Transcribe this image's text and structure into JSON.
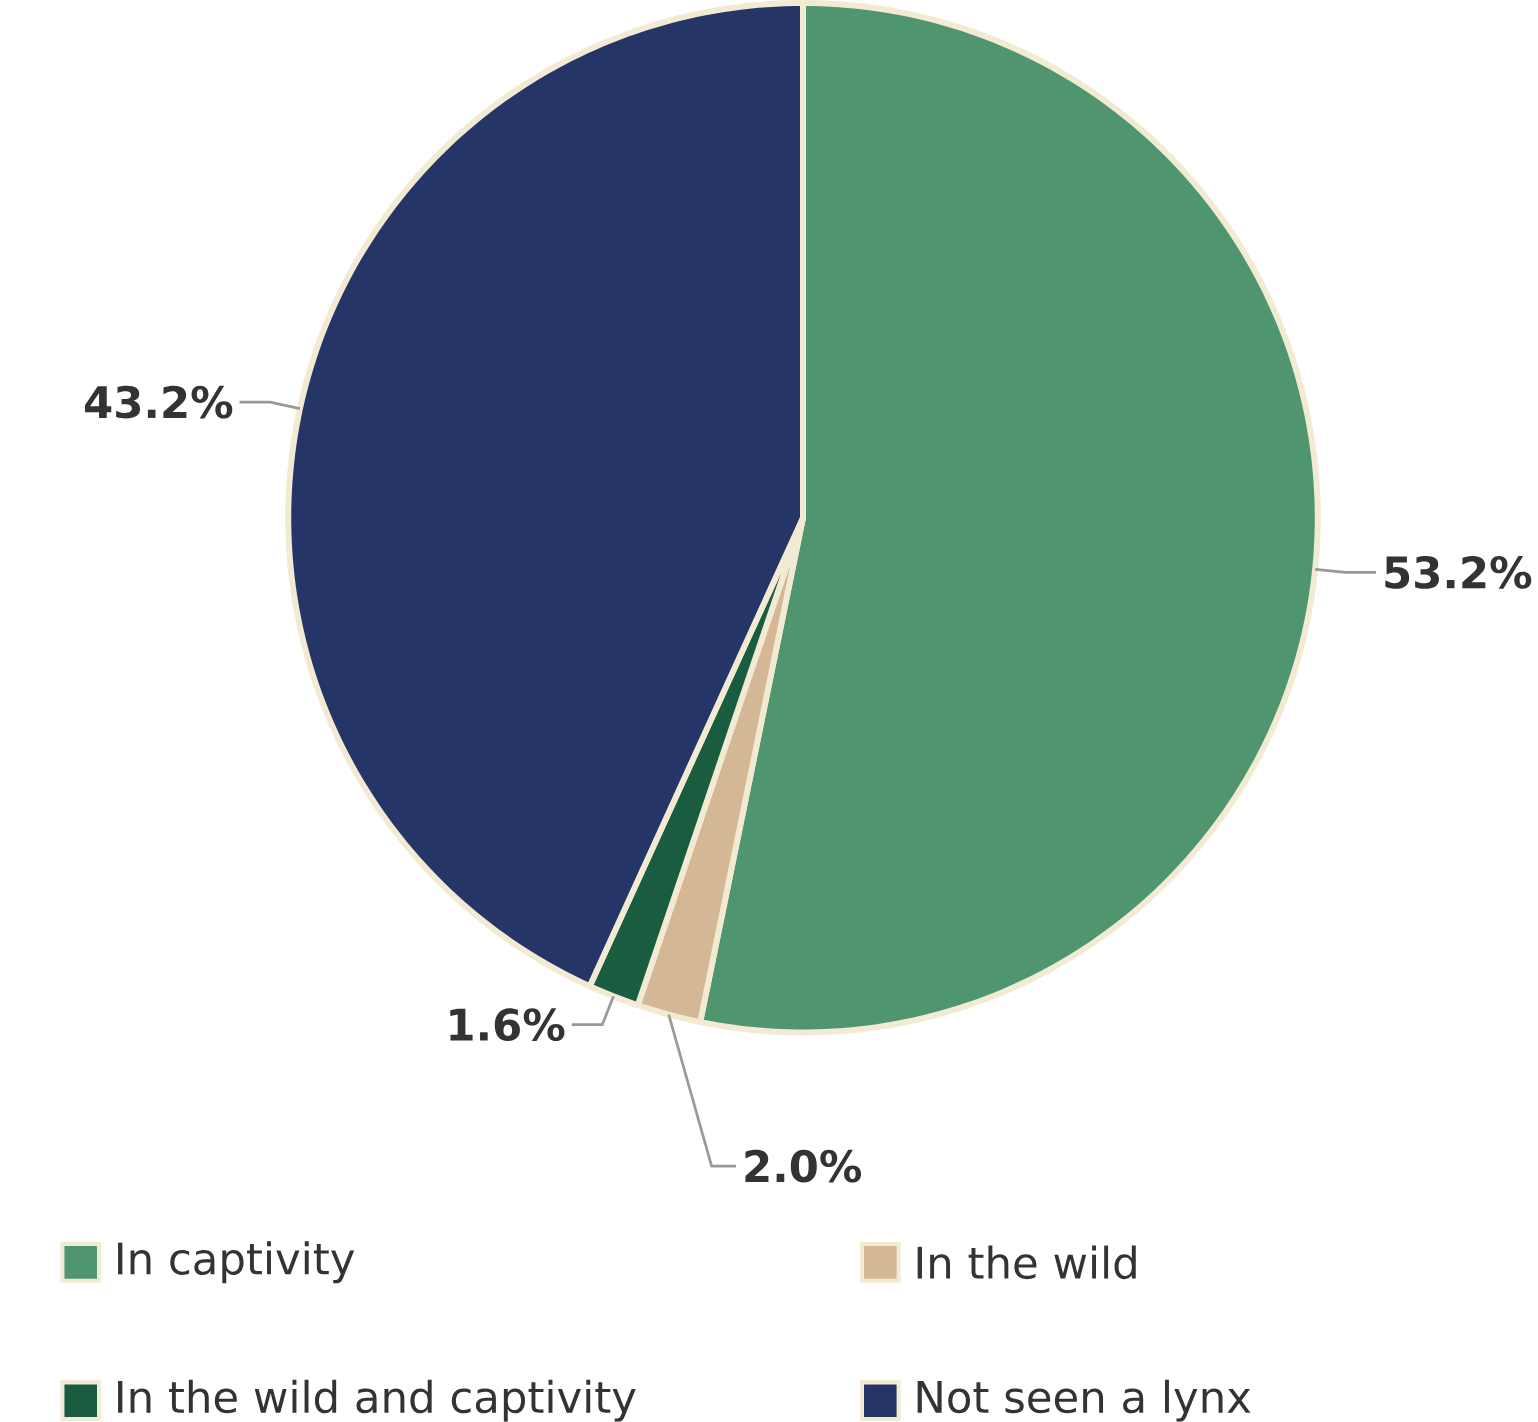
{
  "chart_data": {
    "type": "pie",
    "categories": [
      "In captivity",
      "In the wild",
      "In the wild and captivity",
      "Not seen a lynx"
    ],
    "values": [
      53.2,
      2.0,
      1.6,
      43.2
    ],
    "value_labels": [
      "53.2%",
      "2.0%",
      "1.6%",
      "43.2%"
    ],
    "colors": [
      "#4e9570",
      "#d4b896",
      "#1a5c40",
      "#263568"
    ],
    "legend": "bottom"
  }
}
